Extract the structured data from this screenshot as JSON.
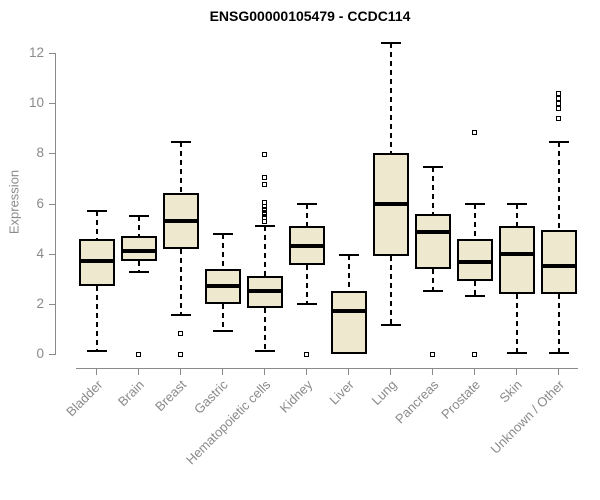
{
  "title": "ENSG00000105479 - CCDC114",
  "colors": {
    "box_fill": "#ede8ce",
    "box_border": "#000000",
    "median": "#000000",
    "whisker": "#000000",
    "axis": "#8a8a8a",
    "tick_label": "#8a8a8a",
    "title": "#000000",
    "background": "#ffffff"
  },
  "chart_data": {
    "type": "boxplot",
    "title": "ENSG00000105479 - CCDC114",
    "xlabel": "",
    "ylabel": "Expression",
    "ylim": [
      0,
      12
    ],
    "yticks": [
      0,
      2,
      4,
      6,
      8,
      10,
      12
    ],
    "grid": false,
    "legend": "none",
    "categories": [
      "Bladder",
      "Brain",
      "Breast",
      "Gastric",
      "Hematopoietic cells",
      "Kidney",
      "Liver",
      "Lung",
      "Pancreas",
      "Prostate",
      "Skin",
      "Unknown / Other"
    ],
    "series": [
      {
        "name": "Bladder",
        "whisker_low": 0.1,
        "q1": 2.7,
        "median": 3.7,
        "q3": 4.6,
        "whisker_high": 5.7,
        "outliers": []
      },
      {
        "name": "Brain",
        "whisker_low": 3.25,
        "q1": 3.7,
        "median": 4.1,
        "q3": 4.7,
        "whisker_high": 5.5,
        "outliers": [
          0
        ]
      },
      {
        "name": "Breast",
        "whisker_low": 1.55,
        "q1": 4.2,
        "median": 5.3,
        "q3": 6.4,
        "whisker_high": 8.45,
        "outliers": [
          0.8,
          0
        ]
      },
      {
        "name": "Gastric",
        "whisker_low": 0.9,
        "q1": 2.0,
        "median": 2.7,
        "q3": 3.4,
        "whisker_high": 4.8,
        "outliers": []
      },
      {
        "name": "Hematopoietic cells",
        "whisker_low": 0.1,
        "q1": 1.85,
        "median": 2.5,
        "q3": 3.1,
        "whisker_high": 5.1,
        "outliers": [
          5.3,
          5.45,
          5.55,
          5.65,
          5.75,
          5.9,
          6.05,
          6.75,
          7.05,
          7.95
        ]
      },
      {
        "name": "Kidney",
        "whisker_low": 2.0,
        "q1": 3.55,
        "median": 4.3,
        "q3": 5.1,
        "whisker_high": 6.0,
        "outliers": [
          0
        ]
      },
      {
        "name": "Liver",
        "whisker_low": 0,
        "q1": 0,
        "median": 1.7,
        "q3": 2.5,
        "whisker_high": 3.95,
        "outliers": []
      },
      {
        "name": "Lung",
        "whisker_low": 1.15,
        "q1": 3.9,
        "median": 6.0,
        "q3": 8.0,
        "whisker_high": 12.4,
        "outliers": []
      },
      {
        "name": "Pancreas",
        "whisker_low": 2.5,
        "q1": 3.4,
        "median": 4.85,
        "q3": 5.6,
        "whisker_high": 7.45,
        "outliers": [
          0
        ]
      },
      {
        "name": "Prostate",
        "whisker_low": 2.3,
        "q1": 2.9,
        "median": 3.65,
        "q3": 4.6,
        "whisker_high": 6.0,
        "outliers": [
          8.85,
          0
        ]
      },
      {
        "name": "Skin",
        "whisker_low": 0.05,
        "q1": 2.4,
        "median": 4.0,
        "q3": 5.1,
        "whisker_high": 6.0,
        "outliers": []
      },
      {
        "name": "Unknown / Other",
        "whisker_low": 0.05,
        "q1": 2.4,
        "median": 3.5,
        "q3": 4.95,
        "whisker_high": 8.45,
        "outliers": [
          9.4,
          9.8,
          10.0,
          10.2,
          10.4
        ]
      }
    ]
  }
}
